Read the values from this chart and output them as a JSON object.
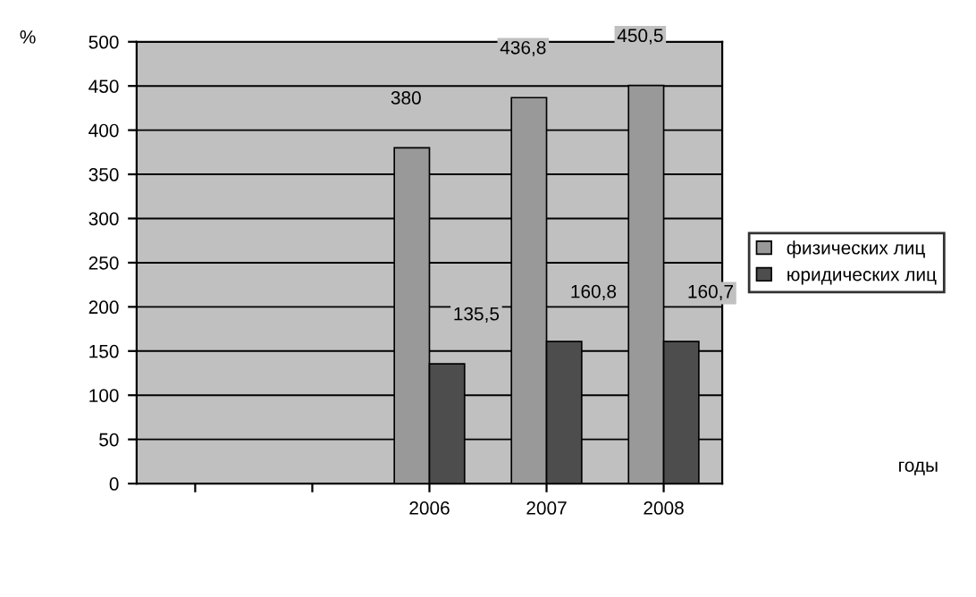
{
  "chart_data": {
    "type": "bar",
    "ylabel": "%",
    "annotations": [
      "годы"
    ],
    "categories": [
      null,
      null,
      "2006",
      "2007",
      "2008"
    ],
    "series": [
      {
        "name": "физических лиц",
        "color": "#999999",
        "values": [
          null,
          null,
          380,
          436.8,
          450.5
        ],
        "value_labels": [
          null,
          null,
          "380",
          "436,8",
          "450,5"
        ]
      },
      {
        "name": "юридических лиц",
        "color": "#4d4d4d",
        "values": [
          null,
          null,
          135.5,
          160.8,
          160.7
        ],
        "value_labels": [
          null,
          null,
          "135,5",
          "160,8",
          "160,7"
        ]
      }
    ],
    "ylim": [
      0,
      500
    ],
    "yticks": [
      0,
      50,
      100,
      150,
      200,
      250,
      300,
      350,
      400,
      450,
      500
    ],
    "grid": "y",
    "legend": "right"
  }
}
